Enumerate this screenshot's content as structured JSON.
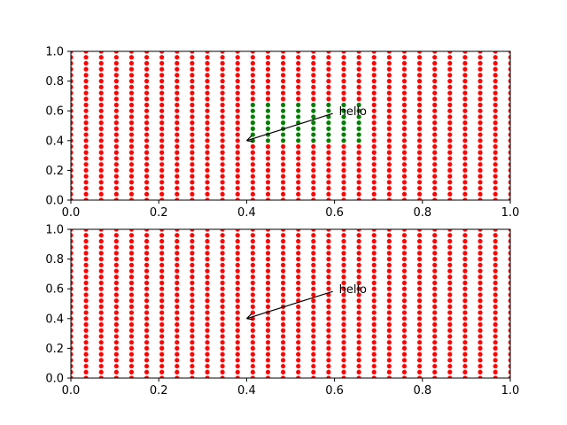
{
  "colors": {
    "scatter_red": "#ff0000",
    "scatter_green": "#008000",
    "axes": "#000000",
    "background": "#ffffff"
  },
  "chart_data": [
    {
      "type": "scatter",
      "title": "",
      "xlabel": "",
      "ylabel": "",
      "xlim": [
        0,
        1
      ],
      "ylim": [
        0,
        1
      ],
      "x_ticks": [
        "0.0",
        "0.2",
        "0.4",
        "0.6",
        "0.8",
        "1.0"
      ],
      "y_ticks": [
        "0.0",
        "0.2",
        "0.4",
        "0.6",
        "0.8",
        "1.0"
      ],
      "grid": false,
      "grid_points": {
        "x_start": 0.0,
        "x_step": 0.0345,
        "x_count": 30,
        "y_start": 0.0,
        "y_step": 0.04,
        "y_count": 26
      },
      "series": [
        {
          "color": "#ff0000",
          "region": "all"
        },
        {
          "color": "#008000",
          "region": {
            "x": [
              0.4,
              0.66
            ],
            "y": [
              0.4,
              0.66
            ]
          }
        }
      ],
      "annotation": {
        "text": "hello",
        "xy": [
          0.4,
          0.4
        ],
        "xytext": [
          0.6,
          0.6
        ],
        "arrow": true
      }
    },
    {
      "type": "scatter",
      "title": "",
      "xlabel": "",
      "ylabel": "",
      "xlim": [
        0,
        1
      ],
      "ylim": [
        0,
        1
      ],
      "x_ticks": [
        "0.0",
        "0.2",
        "0.4",
        "0.6",
        "0.8",
        "1.0"
      ],
      "y_ticks": [
        "0.0",
        "0.2",
        "0.4",
        "0.6",
        "0.8",
        "1.0"
      ],
      "grid": false,
      "grid_points": {
        "x_start": 0.0,
        "x_step": 0.0345,
        "x_count": 30,
        "y_start": 0.0,
        "y_step": 0.04,
        "y_count": 26
      },
      "series": [
        {
          "color": "#ff0000",
          "region": "all"
        }
      ],
      "annotation": {
        "text": "hello",
        "xy": [
          0.4,
          0.4
        ],
        "xytext": [
          0.6,
          0.6
        ],
        "arrow": true
      }
    }
  ]
}
